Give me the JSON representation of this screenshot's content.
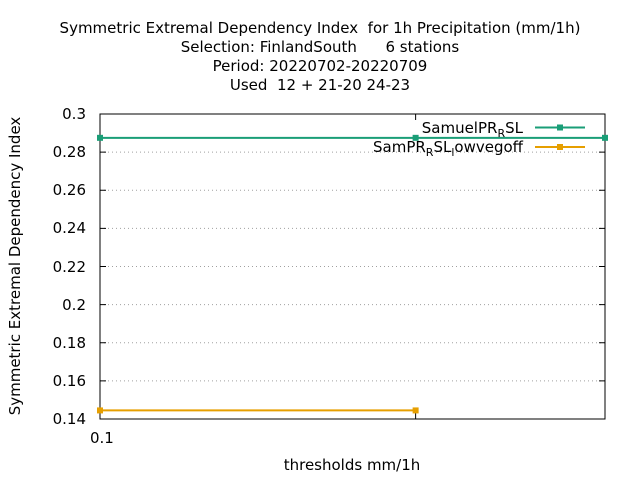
{
  "chart_data": {
    "type": "line",
    "title_lines": [
      "Symmetric Extremal Dependency Index  for 1h Precipitation (mm/1h)",
      "Selection: FinlandSouth      6 stations",
      "Period: 20220702-20220709",
      "Used  12 + 21-20 24-23"
    ],
    "xlabel": "thresholds mm/1h",
    "ylabel": "Symmetric Extremal Dependency Index",
    "ylim": [
      0.14,
      0.3
    ],
    "y_ticks": [
      "0.14",
      "0.16",
      "0.18",
      "0.2",
      "0.22",
      "0.24",
      "0.26",
      "0.28",
      "0.3"
    ],
    "x_ticks": [
      "0.1"
    ],
    "x_positions": [
      0,
      1,
      1.6
    ],
    "xlim": [
      0,
      1.6
    ],
    "grid": true,
    "legend_position": "top-right",
    "series": [
      {
        "name_main": "SamuelPR",
        "name_sub": "R",
        "name_tail": "SL",
        "color": "#1a9e77",
        "points": [
          [
            0,
            0.2875
          ],
          [
            1,
            0.2875
          ],
          [
            1.6,
            0.2875
          ]
        ]
      },
      {
        "name_main": "SamPR",
        "name_sub": "R",
        "name_tail": "SL",
        "name_sub2": "l",
        "name_tail2": "owvegoff",
        "color": "#e69f00",
        "points": [
          [
            0,
            0.1445
          ],
          [
            1,
            0.1445
          ]
        ]
      }
    ]
  }
}
